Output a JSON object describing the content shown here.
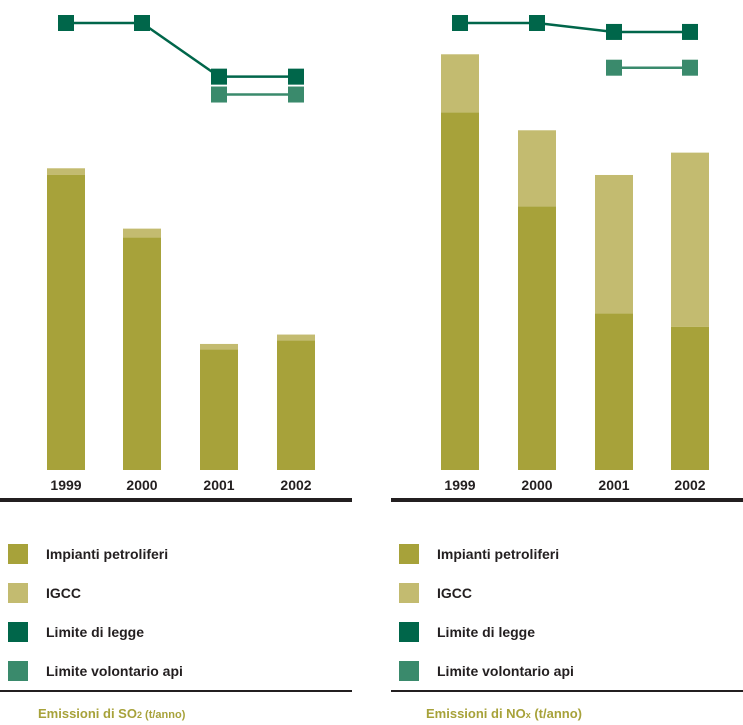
{
  "colors": {
    "impianti": "#a7a23a",
    "igcc": "#c3bb70",
    "limite_legge": "#00664a",
    "limite_volontario": "#3a8a6c"
  },
  "legend": [
    {
      "key": "impianti",
      "label": "Impianti petroliferi"
    },
    {
      "key": "igcc",
      "label": "IGCC"
    },
    {
      "key": "limite_legge",
      "label": "Limite di legge"
    },
    {
      "key": "limite_volontario",
      "label": "Limite volontario api"
    }
  ],
  "captions": {
    "so2": {
      "prefix": "Emissioni di SO",
      "sub": "2",
      "unit": " (t/anno)"
    },
    "nox": {
      "prefix": "Emissioni di NO",
      "sub": "x",
      "unit": " (t/anno)"
    }
  },
  "chart_data": [
    {
      "type": "bar",
      "stacked": true,
      "categories": [
        "1999",
        "2000",
        "2001",
        "2002"
      ],
      "ylim": [
        0,
        100
      ],
      "series": [
        {
          "name": "Impianti petroliferi",
          "values": [
            66,
            52,
            27,
            29
          ]
        },
        {
          "name": "IGCC",
          "values": [
            1.5,
            2,
            1.2,
            1.3
          ]
        }
      ],
      "lines": [
        {
          "name": "Limite di legge",
          "values": [
            100,
            100,
            88,
            88
          ]
        },
        {
          "name": "Limite volontario api",
          "values": [
            null,
            null,
            84,
            84
          ]
        }
      ]
    },
    {
      "type": "bar",
      "stacked": true,
      "categories": [
        "1999",
        "2000",
        "2001",
        "2002"
      ],
      "ylim": [
        0,
        100
      ],
      "series": [
        {
          "name": "Impianti petroliferi",
          "values": [
            80,
            59,
            35,
            32
          ]
        },
        {
          "name": "IGCC",
          "values": [
            13,
            17,
            31,
            39
          ]
        }
      ],
      "lines": [
        {
          "name": "Limite di legge",
          "values": [
            100,
            100,
            98,
            98
          ]
        },
        {
          "name": "Limite volontario api",
          "values": [
            null,
            null,
            90,
            90
          ]
        }
      ]
    }
  ]
}
